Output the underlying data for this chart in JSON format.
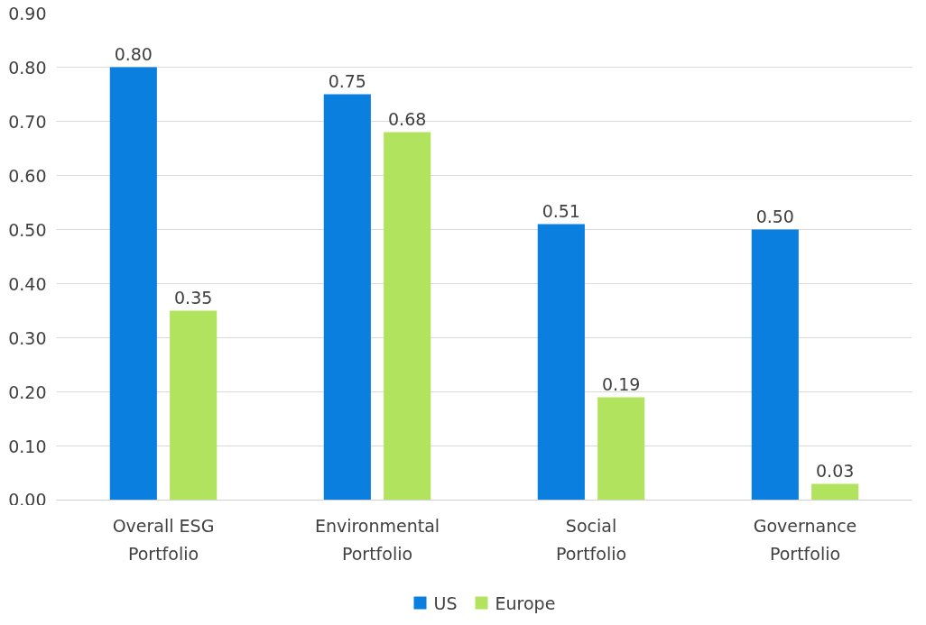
{
  "chart_data": {
    "type": "bar",
    "categories": [
      "Overall ESG Portfolio",
      "Environmental Portfolio",
      "Social Portfolio",
      "Governance Portfolio"
    ],
    "series": [
      {
        "name": "US",
        "color": "#0a7fe0",
        "values": [
          0.8,
          0.75,
          0.51,
          0.5
        ],
        "value_labels": [
          "0.80",
          "0.75",
          "0.51",
          "0.50"
        ]
      },
      {
        "name": "Europe",
        "color": "#b2e35f",
        "values": [
          0.35,
          0.68,
          0.19,
          0.03
        ],
        "value_labels": [
          "0.35",
          "0.68",
          "0.19",
          "0.03"
        ]
      }
    ],
    "ylim": [
      0,
      0.9
    ],
    "yticks": [
      {
        "value": 0,
        "label": "0.00"
      },
      {
        "value": 0.1,
        "label": "0.10"
      },
      {
        "value": 0.2,
        "label": "0.20"
      },
      {
        "value": 0.3,
        "label": "0.30"
      },
      {
        "value": 0.4,
        "label": "0.40"
      },
      {
        "value": 0.5,
        "label": "0.50"
      },
      {
        "value": 0.6,
        "label": "0.60"
      },
      {
        "value": 0.7,
        "label": "0.70"
      },
      {
        "value": 0.8,
        "label": "0.80"
      },
      {
        "value": 0.9,
        "label": "0.90"
      }
    ],
    "grid": "y",
    "legend": "bottom"
  }
}
